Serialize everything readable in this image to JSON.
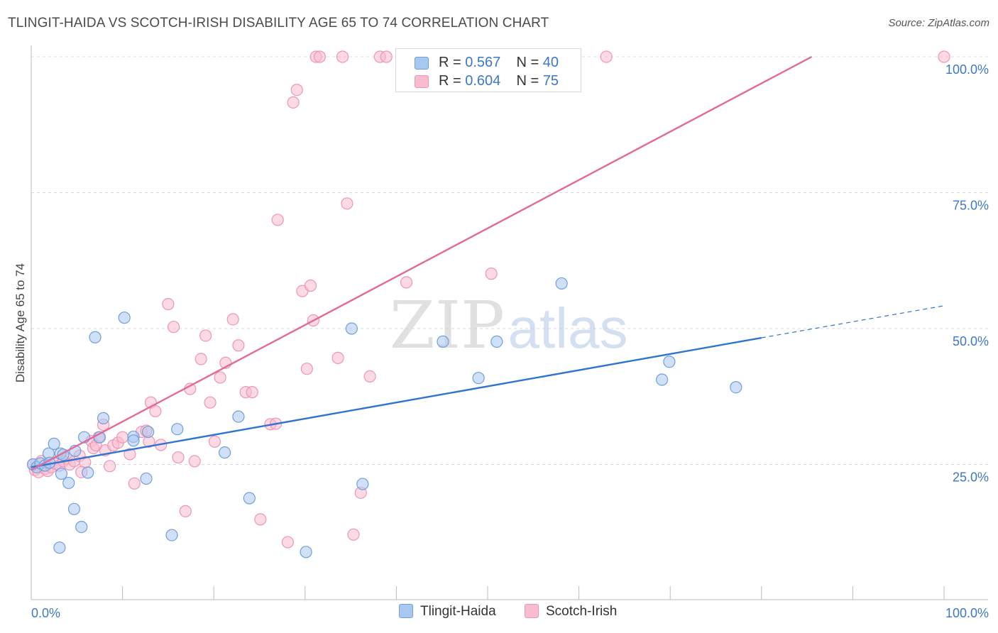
{
  "title": "TLINGIT-HAIDA VS SCOTCH-IRISH DISABILITY AGE 65 TO 74 CORRELATION CHART",
  "source": "Source: ZipAtlas.com",
  "watermark": {
    "zip": "ZIP",
    "atlas": "atlas"
  },
  "colors": {
    "blue_fill": "#a9c8f0",
    "blue_stroke": "#6f9fdc",
    "blue_line": "#2f74d0",
    "pink_fill": "#f7bcd0",
    "pink_stroke": "#ee95b4",
    "pink_line": "#e36a97",
    "grid": "#d8d8d8",
    "tick_label": "#3b78c8"
  },
  "legend": {
    "rows": [
      {
        "r_label": "R = ",
        "r_value": "0.567",
        "n_label": "N = ",
        "n_value": "40",
        "series": "blue"
      },
      {
        "r_label": "R = ",
        "r_value": "0.604",
        "n_label": "N = ",
        "n_value": "75",
        "series": "pink"
      }
    ]
  },
  "bottom_legend": [
    {
      "label": "Tlingit-Haida",
      "series": "blue"
    },
    {
      "label": "Scotch-Irish",
      "series": "pink"
    }
  ],
  "chart_data": {
    "type": "scatter",
    "xlabel": "",
    "ylabel": "Disability Age 65 to 74",
    "xlim": [
      0,
      100
    ],
    "ylim": [
      0,
      102
    ],
    "x_tick_labels": [
      {
        "value": 0,
        "label": "0.0%"
      },
      {
        "value": 100,
        "label": "100.0%"
      }
    ],
    "y_tick_labels": [
      {
        "value": 25,
        "label": "25.0%"
      },
      {
        "value": 50,
        "label": "50.0%"
      },
      {
        "value": 75,
        "label": "75.0%"
      },
      {
        "value": 100,
        "label": "100.0%"
      }
    ],
    "y_gridlines": [
      25,
      50,
      75,
      100
    ],
    "series": [
      {
        "name": "Tlingit-Haida",
        "color": "blue",
        "R": 0.567,
        "N": 40,
        "trend": {
          "x0": 0,
          "y0": 24.5,
          "x1": 80,
          "y1": 48.3,
          "dashed_to_x": 100,
          "dashed_to_y": 54.2
        },
        "points": [
          [
            0.2,
            25.0
          ],
          [
            0.6,
            24.5
          ],
          [
            1.0,
            25.2
          ],
          [
            1.5,
            24.8
          ],
          [
            1.9,
            27.0
          ],
          [
            2.5,
            28.8
          ],
          [
            3.2,
            27.0
          ],
          [
            3.5,
            26.8
          ],
          [
            3.3,
            23.3
          ],
          [
            4.1,
            21.6
          ],
          [
            4.8,
            27.5
          ],
          [
            4.7,
            16.8
          ],
          [
            5.5,
            13.5
          ],
          [
            6.2,
            23.5
          ],
          [
            3.1,
            9.7
          ],
          [
            5.8,
            30.0
          ],
          [
            7.5,
            30.0
          ],
          [
            7.9,
            33.5
          ],
          [
            7.0,
            48.4
          ],
          [
            10.2,
            52.0
          ],
          [
            11.2,
            30.1
          ],
          [
            11.2,
            29.4
          ],
          [
            12.6,
            22.4
          ],
          [
            12.8,
            31.0
          ],
          [
            15.4,
            12.0
          ],
          [
            16.0,
            31.5
          ],
          [
            21.2,
            27.2
          ],
          [
            22.7,
            33.8
          ],
          [
            23.9,
            18.8
          ],
          [
            30.1,
            8.9
          ],
          [
            35.1,
            50.0
          ],
          [
            36.3,
            21.4
          ],
          [
            45.1,
            47.6
          ],
          [
            49.0,
            40.9
          ],
          [
            51.0,
            47.6
          ],
          [
            58.1,
            58.3
          ],
          [
            69.1,
            40.6
          ],
          [
            69.9,
            43.9
          ],
          [
            77.2,
            39.2
          ],
          [
            2.0,
            25.3
          ]
        ]
      },
      {
        "name": "Scotch-Irish",
        "color": "pink",
        "R": 0.604,
        "N": 75,
        "trend": {
          "x0": 0,
          "y0": 24.0,
          "x1": 85.5,
          "y1": 100.0
        },
        "points": [
          [
            0.2,
            25.0
          ],
          [
            0.4,
            24.0
          ],
          [
            0.8,
            23.6
          ],
          [
            1.1,
            25.6
          ],
          [
            1.5,
            24.2
          ],
          [
            1.8,
            23.8
          ],
          [
            2.2,
            24.5
          ],
          [
            2.7,
            25.1
          ],
          [
            3.1,
            24.8
          ],
          [
            3.5,
            25.6
          ],
          [
            3.9,
            26.1
          ],
          [
            4.2,
            25.0
          ],
          [
            4.7,
            25.6
          ],
          [
            5.3,
            26.6
          ],
          [
            5.9,
            25.4
          ],
          [
            5.5,
            23.6
          ],
          [
            6.6,
            29.3
          ],
          [
            6.8,
            28.0
          ],
          [
            7.1,
            28.5
          ],
          [
            7.4,
            30.0
          ],
          [
            7.9,
            32.3
          ],
          [
            8.1,
            27.6
          ],
          [
            8.6,
            24.7
          ],
          [
            9.0,
            28.5
          ],
          [
            9.5,
            29.0
          ],
          [
            10.0,
            30.0
          ],
          [
            10.8,
            26.9
          ],
          [
            11.3,
            21.5
          ],
          [
            12.1,
            31.0
          ],
          [
            12.6,
            31.2
          ],
          [
            12.9,
            29.2
          ],
          [
            13.1,
            36.4
          ],
          [
            13.6,
            34.8
          ],
          [
            14.2,
            28.6
          ],
          [
            15.0,
            54.5
          ],
          [
            15.6,
            50.3
          ],
          [
            16.1,
            26.3
          ],
          [
            16.9,
            16.4
          ],
          [
            17.4,
            38.9
          ],
          [
            17.9,
            25.6
          ],
          [
            18.6,
            44.4
          ],
          [
            19.1,
            48.7
          ],
          [
            19.6,
            36.4
          ],
          [
            20.1,
            29.2
          ],
          [
            20.7,
            41.0
          ],
          [
            21.3,
            43.7
          ],
          [
            22.1,
            51.7
          ],
          [
            22.7,
            46.9
          ],
          [
            23.5,
            38.3
          ],
          [
            24.2,
            38.3
          ],
          [
            25.1,
            14.9
          ],
          [
            26.2,
            32.4
          ],
          [
            26.8,
            32.5
          ],
          [
            27.0,
            70.0
          ],
          [
            28.1,
            10.7
          ],
          [
            28.7,
            91.6
          ],
          [
            29.1,
            93.9
          ],
          [
            29.7,
            56.9
          ],
          [
            30.2,
            42.6
          ],
          [
            30.6,
            57.9
          ],
          [
            30.9,
            51.5
          ],
          [
            31.2,
            100.0
          ],
          [
            31.6,
            100.0
          ],
          [
            33.6,
            44.6
          ],
          [
            34.1,
            100.0
          ],
          [
            34.6,
            73.0
          ],
          [
            35.3,
            12.1
          ],
          [
            36.1,
            19.8
          ],
          [
            37.1,
            41.2
          ],
          [
            38.2,
            100.0
          ],
          [
            38.9,
            100.0
          ],
          [
            41.1,
            58.5
          ],
          [
            50.4,
            60.1
          ],
          [
            63.0,
            100.0
          ],
          [
            100.0,
            100.0
          ]
        ]
      }
    ]
  }
}
